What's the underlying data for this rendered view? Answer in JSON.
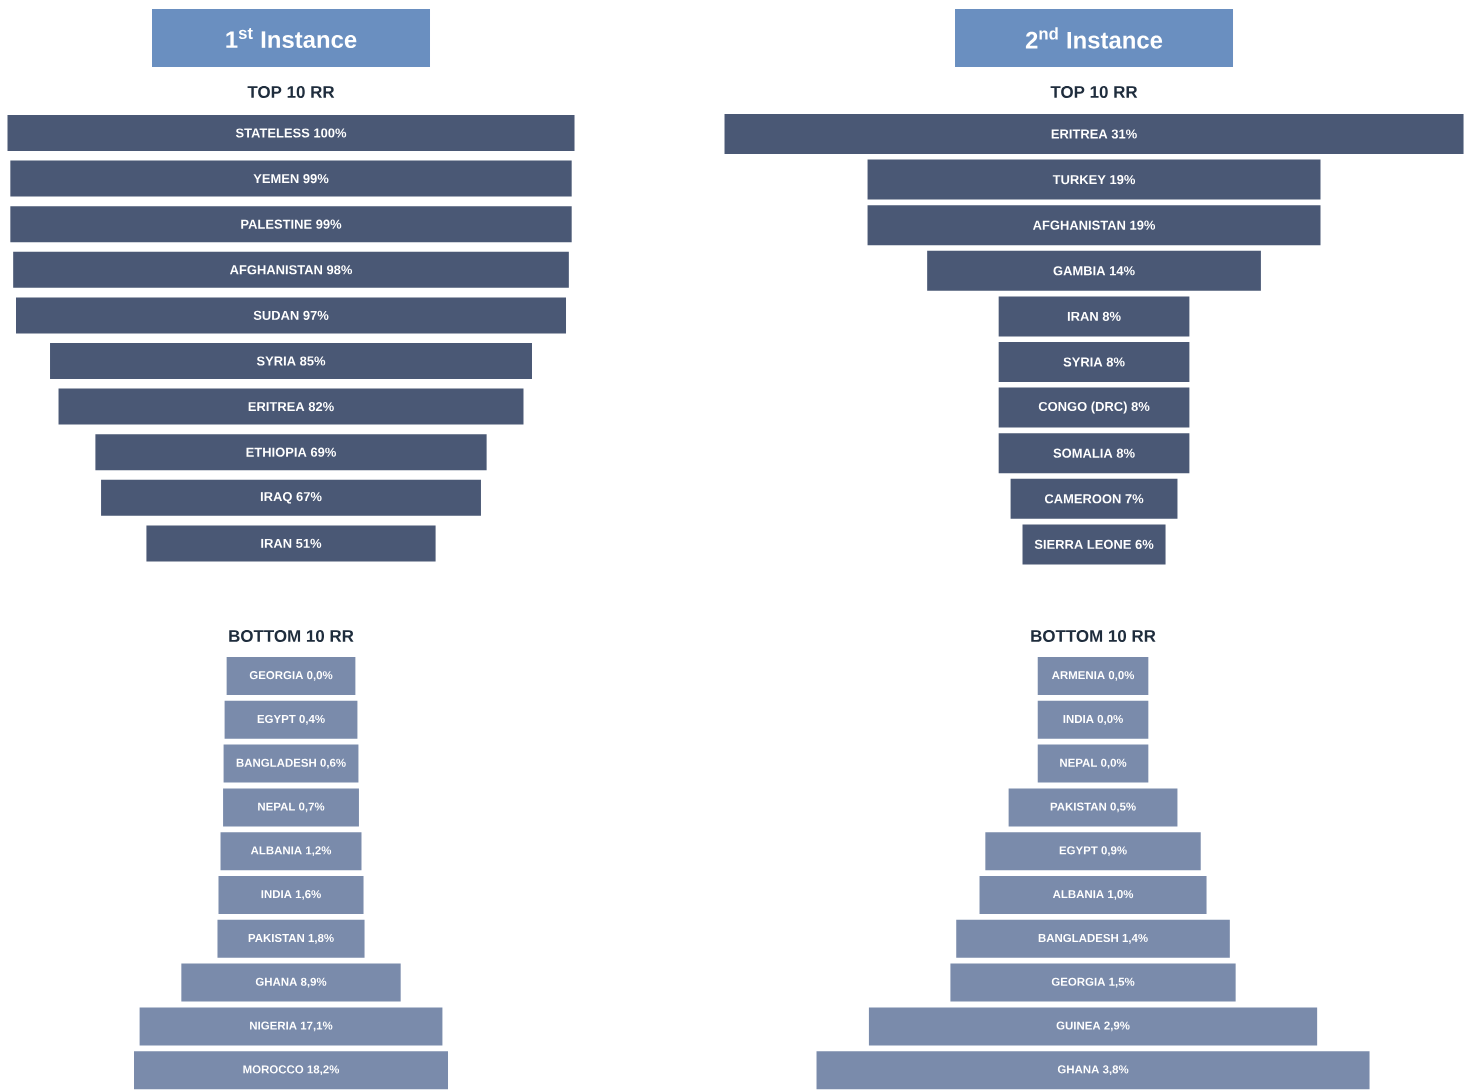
{
  "chart_data": [
    {
      "type": "other",
      "title": "1$^{st}$ Instance",
      "subtitle": "TOP 10 RR",
      "color": "#4a5875",
      "categories": [
        "STATELESS",
        "YEMEN",
        "PALESTINE",
        "AFGHANISTAN",
        "SUDAN",
        "SYRIA",
        "ERITREA",
        "ETHIOPIA",
        "IRAQ",
        "IRAN"
      ],
      "values": [
        100,
        99,
        99,
        98,
        97,
        85,
        82,
        69,
        67,
        51
      ],
      "value_labels": [
        "100%",
        "99%",
        "99%",
        "98%",
        "97%",
        "85%",
        "82%",
        "69%",
        "67%",
        "51%"
      ]
    },
    {
      "type": "other",
      "title": "2$^{nd}$ Instance",
      "subtitle": "TOP 10 RR",
      "color": "#4a5875",
      "categories": [
        "ERITREA",
        "TURKEY",
        "AFGHANISTAN",
        "GAMBIA",
        "IRAN",
        "SYRIA",
        "CONGO (DRC)",
        "SOMALIA",
        "CAMEROON",
        "SIERRA LEONE"
      ],
      "values": [
        31,
        19,
        19,
        14,
        8,
        8,
        8,
        8,
        7,
        6
      ],
      "value_labels": [
        "31%",
        "19%",
        "19%",
        "14%",
        "8%",
        "8%",
        "8%",
        "8%",
        "7%",
        "6%"
      ]
    },
    {
      "type": "other",
      "title": "BOTTOM 10 RR",
      "color": "#7a8bab",
      "categories": [
        "GEORGIA",
        "EGYPT",
        "BANGLADESH",
        "NEPAL",
        "ALBANIA",
        "INDIA",
        "PAKISTAN",
        "GHANA",
        "NIGERIA",
        "MOROCCO"
      ],
      "values": [
        0.0,
        0.4,
        0.6,
        0.7,
        1.2,
        1.6,
        1.8,
        8.9,
        17.1,
        18.2
      ],
      "value_labels": [
        "0,0%",
        "0,4%",
        "0,6%",
        "0,7%",
        "1,2%",
        "1,6%",
        "1,8%",
        "8,9%",
        "17,1%",
        "18,2%"
      ]
    },
    {
      "type": "other",
      "title": "BOTTOM 10 RR",
      "color": "#7a8bab",
      "categories": [
        "ARMENIA",
        "INDIA",
        "NEPAL",
        "PAKISTAN",
        "EGYPT",
        "ALBANIA",
        "BANGLADESH",
        "GEORGIA",
        "GUINEA",
        "GHANA"
      ],
      "values": [
        0.0,
        0.0,
        0.0,
        0.5,
        0.9,
        1.0,
        1.4,
        1.5,
        2.9,
        3.8
      ],
      "value_labels": [
        "0,0%",
        "0,0%",
        "0,0%",
        "0,5%",
        "0,9%",
        "1,0%",
        "1,4%",
        "1,5%",
        "2,9%",
        "3,8%"
      ]
    }
  ]
}
